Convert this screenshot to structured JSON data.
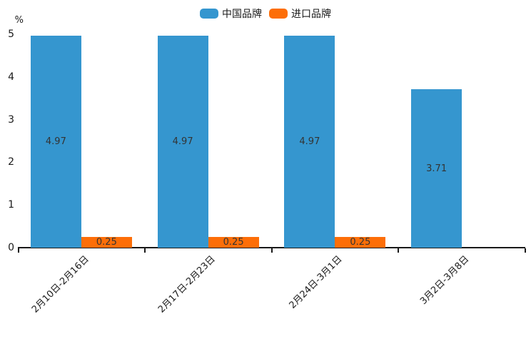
{
  "unit_label": "%",
  "chart_data": {
    "type": "bar",
    "title": "",
    "xlabel": "",
    "ylabel": "%",
    "categories": [
      "2月10日-2月16日",
      "2月17日-2月23日",
      "2月24日-3月1日",
      "3月2日-3月8日"
    ],
    "series": [
      {
        "name": "中国品牌",
        "color": "#3596CF",
        "values": [
          4.97,
          4.97,
          4.97,
          3.71
        ]
      },
      {
        "name": "进口品牌",
        "color": "#FD6E08",
        "values": [
          0.25,
          0.25,
          0.25,
          null
        ]
      }
    ],
    "ylim": [
      0,
      5
    ],
    "y_ticks": [
      0,
      1,
      2,
      3,
      4,
      5
    ],
    "grid": false,
    "legend_position": "top-center",
    "value_labels": true,
    "value_label_decimals": 2,
    "x_label_rotation": -45
  },
  "colors": {
    "axis": "#1a1a1a",
    "value_label": "#333333",
    "background": "#ffffff"
  }
}
